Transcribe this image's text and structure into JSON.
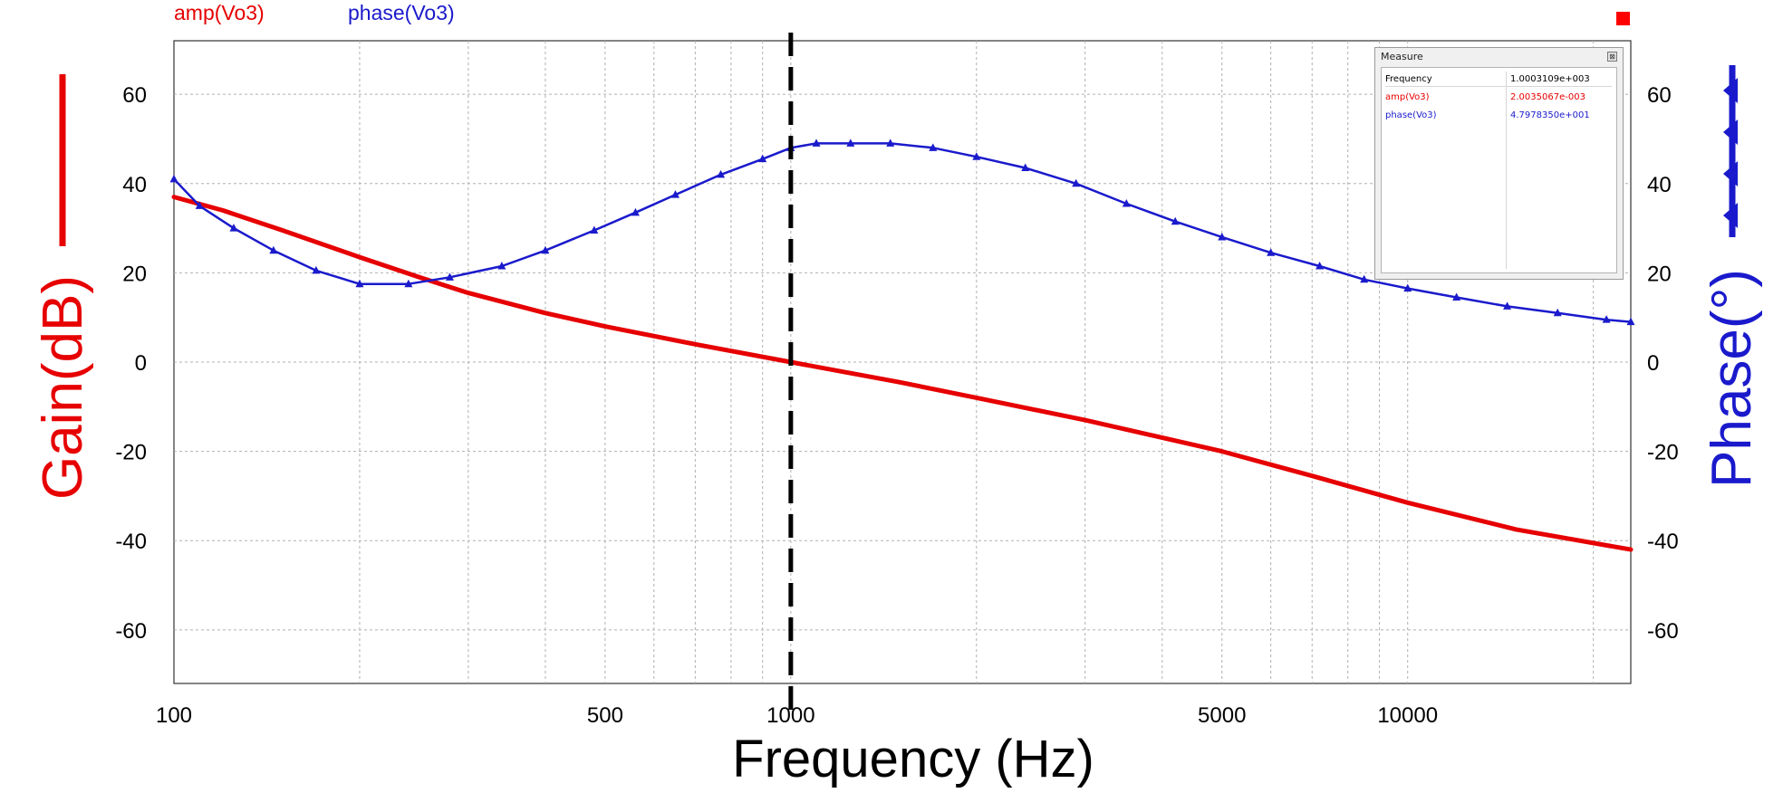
{
  "legend": {
    "gain_label": "amp(Vo3)",
    "phase_label": "phase(Vo3)"
  },
  "measure": {
    "title": "Measure",
    "close_glyph": "⊠",
    "rows": [
      {
        "name": "Frequency",
        "value": "1.0003109e+003"
      },
      {
        "name": "amp(Vo3)",
        "value": "2.0035067e-003"
      },
      {
        "name": "phase(Vo3)",
        "value": "4.7978350e+001"
      }
    ]
  },
  "colors": {
    "gain": "#e60000",
    "phase": "#1a1acc",
    "cursor": "#000000",
    "grid": "#b0b0b0"
  },
  "chart_data": {
    "type": "line",
    "xlabel": "Frequency (Hz)",
    "ylabel_left": "Gain(dB)",
    "ylabel_right": "Phase(°)",
    "x_scale": "log",
    "xlim": [
      100,
      23000
    ],
    "ylim_left": [
      -72,
      72
    ],
    "ylim_right": [
      -72,
      72
    ],
    "x_ticks": [
      100,
      500,
      1000,
      5000,
      10000
    ],
    "x_tick_labels": [
      "100",
      "500",
      "1000",
      "5000",
      "10000"
    ],
    "y_ticks_left": [
      60,
      40,
      20,
      0,
      -20,
      -40,
      -60
    ],
    "y_tick_labels_left": [
      "60",
      "40",
      "20",
      "0",
      "-20",
      "-40",
      "-60"
    ],
    "y_ticks_right": [
      60,
      40,
      20,
      0,
      -20,
      -40,
      -60
    ],
    "y_tick_labels_right": [
      "60",
      "40",
      "20",
      "0",
      "-20",
      "-40",
      "-60"
    ],
    "grid": true,
    "cursor_x": 1000,
    "series": [
      {
        "name": "amp(Vo3)",
        "axis": "left",
        "x": [
          100,
          120,
          150,
          200,
          250,
          300,
          400,
          500,
          700,
          1000,
          1500,
          2000,
          3000,
          5000,
          7000,
          10000,
          15000,
          23000
        ],
        "y": [
          37,
          34,
          29.5,
          23.5,
          19,
          15.5,
          11,
          8,
          4,
          0,
          -4.5,
          -8,
          -13,
          -20,
          -25.5,
          -31.5,
          -37.5,
          -42
        ]
      },
      {
        "name": "phase(Vo3)",
        "axis": "right",
        "x": [
          100,
          110,
          125,
          145,
          170,
          200,
          240,
          280,
          340,
          400,
          480,
          560,
          650,
          770,
          900,
          1000,
          1100,
          1250,
          1450,
          1700,
          2000,
          2400,
          2900,
          3500,
          4200,
          5000,
          6000,
          7200,
          8500,
          10000,
          12000,
          14500,
          17500,
          21000,
          23000
        ],
        "y": [
          41,
          35,
          30,
          25,
          20.5,
          17.5,
          17.5,
          19,
          21.5,
          25,
          29.5,
          33.5,
          37.5,
          42,
          45.5,
          48,
          49,
          49,
          49,
          48,
          46,
          43.5,
          40,
          35.5,
          31.5,
          28,
          24.5,
          21.5,
          18.5,
          16.5,
          14.5,
          12.5,
          11,
          9.5,
          9
        ]
      }
    ]
  }
}
